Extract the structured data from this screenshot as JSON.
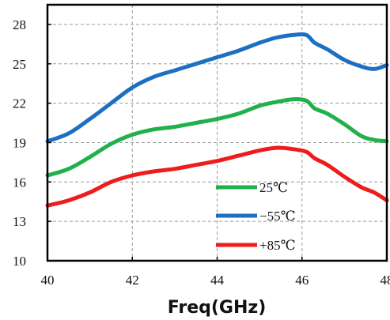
{
  "chart_data": {
    "type": "line",
    "title": "",
    "xlabel": "Freq(GHz)",
    "ylabel": "",
    "xlim": [
      40,
      48
    ],
    "ylim": [
      10,
      29.5
    ],
    "xticks": [
      40,
      42,
      44,
      46,
      48
    ],
    "yticks": [
      10,
      13,
      16,
      19,
      22,
      25,
      28
    ],
    "grid": true,
    "legend": "bottom-right",
    "series": [
      {
        "name": "25℃",
        "color": "#22b04c",
        "x": [
          40,
          40.5,
          41,
          41.5,
          42,
          42.5,
          43,
          43.5,
          44,
          44.5,
          45,
          45.4,
          45.8,
          46.1,
          46.3,
          46.6,
          47,
          47.4,
          47.7,
          48
        ],
        "y": [
          16.5,
          17.0,
          17.9,
          18.9,
          19.6,
          20.0,
          20.2,
          20.5,
          20.8,
          21.2,
          21.8,
          22.1,
          22.3,
          22.2,
          21.6,
          21.2,
          20.4,
          19.5,
          19.2,
          19.1
        ]
      },
      {
        "name": "−55℃",
        "color": "#1c6fc1",
        "x": [
          40,
          40.5,
          41,
          41.5,
          42,
          42.5,
          43,
          43.5,
          44,
          44.5,
          45,
          45.4,
          45.8,
          46.1,
          46.3,
          46.6,
          47,
          47.4,
          47.7,
          48
        ],
        "y": [
          19.1,
          19.7,
          20.8,
          22.0,
          23.2,
          24.0,
          24.5,
          25.0,
          25.5,
          26.0,
          26.6,
          27.0,
          27.2,
          27.2,
          26.6,
          26.1,
          25.3,
          24.8,
          24.6,
          24.9
        ]
      },
      {
        "name": "+85℃",
        "color": "#ee1c1c",
        "x": [
          40,
          40.5,
          41,
          41.5,
          42,
          42.5,
          43,
          43.5,
          44,
          44.5,
          45,
          45.4,
          45.8,
          46.1,
          46.3,
          46.6,
          47,
          47.4,
          47.7,
          48
        ],
        "y": [
          14.2,
          14.6,
          15.2,
          16.0,
          16.5,
          16.8,
          17.0,
          17.3,
          17.6,
          18.0,
          18.4,
          18.6,
          18.5,
          18.3,
          17.8,
          17.3,
          16.4,
          15.6,
          15.2,
          14.6
        ]
      }
    ]
  }
}
